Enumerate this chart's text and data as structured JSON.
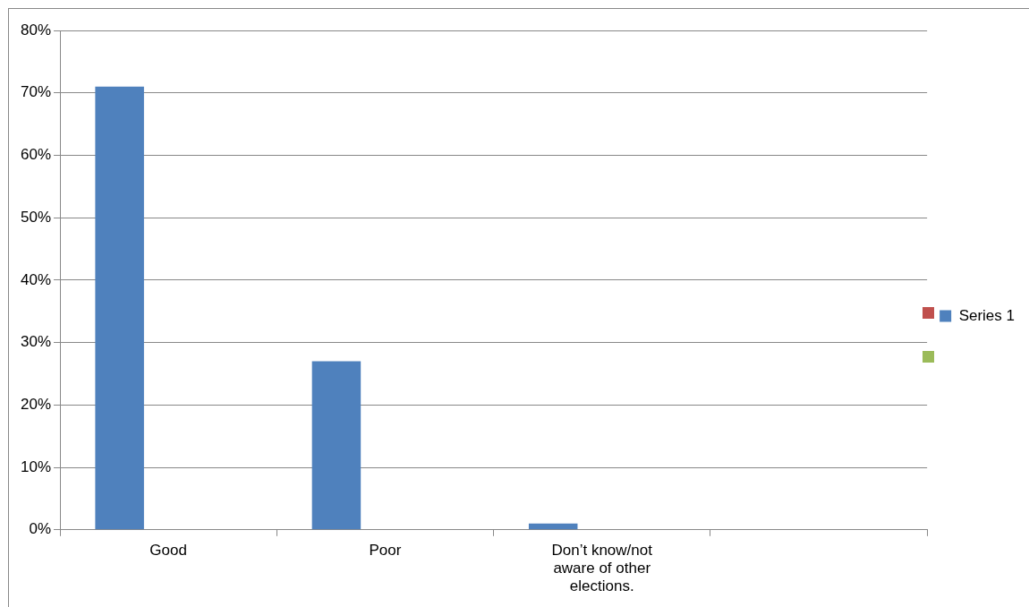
{
  "chart_data": {
    "type": "bar",
    "categories": [
      "Good",
      "Poor",
      "Don’t know/not aware of other elections.",
      null
    ],
    "series": [
      {
        "name": "Series 1",
        "color": "#4f81bd",
        "values": [
          71,
          27,
          1,
          null
        ]
      }
    ],
    "ylim": [
      0,
      80
    ],
    "yticks": [
      {
        "value": 0,
        "label": "0%"
      },
      {
        "value": 10,
        "label": "10%"
      },
      {
        "value": 20,
        "label": "20%"
      },
      {
        "value": 30,
        "label": "30%"
      },
      {
        "value": 40,
        "label": "40%"
      },
      {
        "value": 50,
        "label": "50%"
      },
      {
        "value": 60,
        "label": "60%"
      },
      {
        "value": 70,
        "label": "70%"
      },
      {
        "value": 80,
        "label": "80%"
      }
    ],
    "grid": "y",
    "legend": "right"
  }
}
